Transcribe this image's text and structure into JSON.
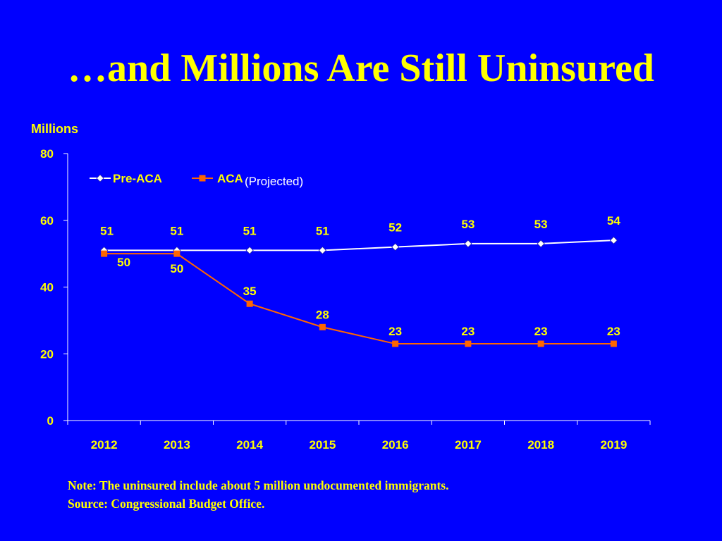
{
  "slide": {
    "title": "…and Millions Are Still Uninsured",
    "note": "Note: The uninsured include about 5 million undocumented immigrants.",
    "source": "Source: Congressional Budget Office."
  },
  "chart_data": {
    "type": "line",
    "ylabel": "Millions",
    "ylim": [
      0,
      80
    ],
    "yticks": [
      "0",
      "20",
      "40",
      "60",
      "80"
    ],
    "categories": [
      "2012",
      "2013",
      "2014",
      "2015",
      "2016",
      "2017",
      "2018",
      "2019"
    ],
    "annotation": "(Projected)",
    "legend_position": "top-left",
    "grid": false,
    "series": [
      {
        "name": "Pre-ACA",
        "values": [
          51,
          51,
          51,
          51,
          52,
          53,
          53,
          54
        ],
        "color": "#FFFFFF",
        "marker": "diamond"
      },
      {
        "name": "ACA",
        "values": [
          50,
          50,
          35,
          28,
          23,
          23,
          23,
          23
        ],
        "color": "#FF6600",
        "marker": "square"
      }
    ],
    "label_color": "#FFFF00",
    "axis_color": "#FFFFFF"
  }
}
